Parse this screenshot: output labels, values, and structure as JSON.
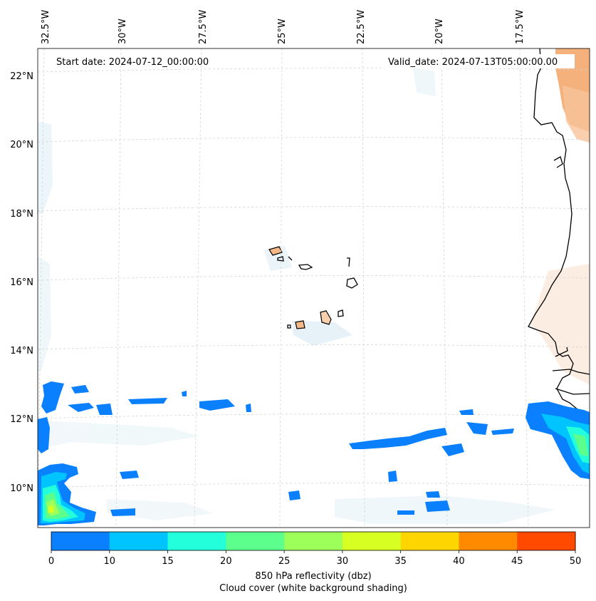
{
  "map": {
    "start_date_label": "Start date: 2024-07-12_00:00:00",
    "valid_date_label": "Valid_date: 2024-07-13T05:00:00.00",
    "lon_labels": [
      "32.5°W",
      "30°W",
      "27.5°W",
      "25°W",
      "22.5°W",
      "20°W",
      "17.5°W"
    ],
    "lat_labels": [
      "22°N",
      "20°N",
      "18°N",
      "16°N",
      "14°N",
      "12°N",
      "10°N"
    ]
  },
  "colorbar": {
    "levels": [
      0,
      10,
      15,
      20,
      25,
      30,
      35,
      40,
      45,
      50
    ],
    "colors": [
      "#0a80ff",
      "#00c4ff",
      "#22ffda",
      "#5cff8c",
      "#9cff5a",
      "#d8ff22",
      "#ffd500",
      "#ff8a00",
      "#ff4a00"
    ],
    "tick_labels": [
      "0",
      "10",
      "15",
      "20",
      "25",
      "30",
      "35",
      "40",
      "45",
      "50"
    ],
    "title": "850 hPa reflectivity (dbz)",
    "subtitle": "Cloud cover (white background shading)"
  },
  "colors": {
    "grid": "#d4d4d4",
    "coast": "#000000",
    "land_tan": "#f6b886",
    "cloud_tint": "#e6f2f8"
  }
}
